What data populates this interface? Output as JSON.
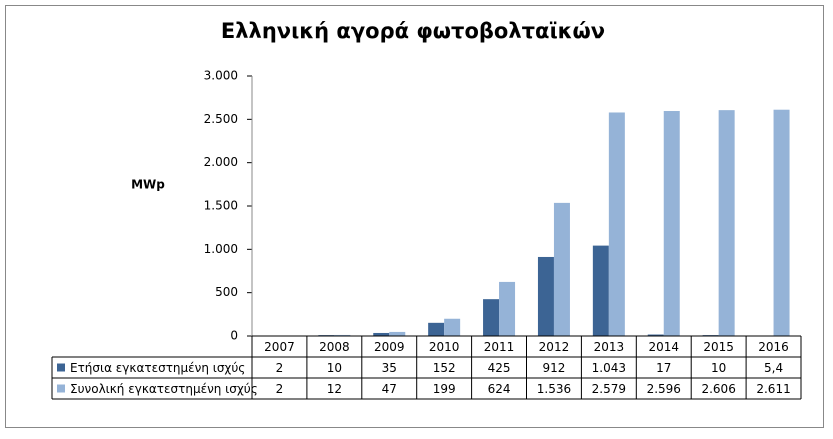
{
  "chart_data": {
    "type": "bar",
    "title": "Ελληνική αγορά φωτοβολταϊκών",
    "y_label": "MWp",
    "categories": [
      "2007",
      "2008",
      "2009",
      "2010",
      "2011",
      "2012",
      "2013",
      "2014",
      "2015",
      "2016"
    ],
    "series": [
      {
        "name": "Ετήσια εγκατεστημένη ισχύς",
        "color": "#3c6494",
        "values": [
          2,
          10,
          35,
          152,
          425,
          912,
          1043,
          17,
          10,
          5.4
        ],
        "value_labels": [
          "2",
          "10",
          "35",
          "152",
          "425",
          "912",
          "1.043",
          "17",
          "10",
          "5,4"
        ]
      },
      {
        "name": "Συνολική εγκατεστημένη ισχύς",
        "color": "#95b3d7",
        "values": [
          2,
          12,
          47,
          199,
          624,
          1536,
          2579,
          2596,
          2606,
          2611
        ],
        "value_labels": [
          "2",
          "12",
          "47",
          "199",
          "624",
          "1.536",
          "2.579",
          "2.596",
          "2.606",
          "2.611"
        ]
      }
    ],
    "ylim": [
      0,
      3000
    ],
    "yticks": [
      0,
      500,
      {
        "value": 1000,
        "label": "1.000"
      },
      {
        "value": 1500,
        "label": "1.500"
      },
      {
        "value": 2000,
        "label": "2.000"
      },
      {
        "value": 2500,
        "label": "2.500"
      },
      {
        "value": 3000,
        "label": "3.000"
      }
    ],
    "grid": false
  }
}
